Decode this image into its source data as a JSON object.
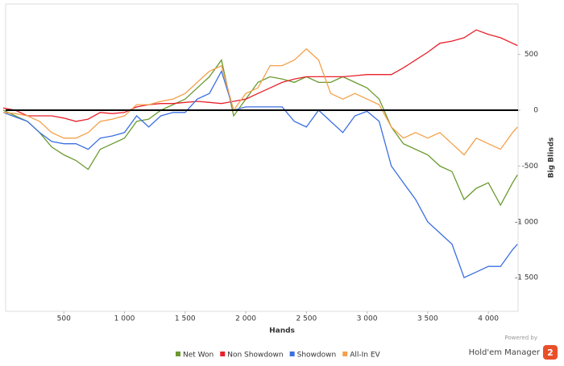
{
  "chart_data": {
    "type": "line",
    "xlabel": "Hands",
    "ylabel": "Big Blinds",
    "x": [
      0,
      100,
      200,
      300,
      400,
      500,
      600,
      700,
      800,
      900,
      1000,
      1100,
      1200,
      1300,
      1400,
      1500,
      1600,
      1700,
      1800,
      1900,
      2000,
      2100,
      2200,
      2300,
      2400,
      2500,
      2600,
      2700,
      2800,
      2900,
      3000,
      3100,
      3200,
      3300,
      3400,
      3500,
      3600,
      3700,
      3800,
      3900,
      4000,
      4100,
      4200,
      4240
    ],
    "series": [
      {
        "name": "Net Won",
        "color": "#6a9a2e",
        "values": [
          0,
          -50,
          -100,
          -200,
          -330,
          -400,
          -450,
          -530,
          -350,
          -300,
          -250,
          -100,
          -80,
          0,
          50,
          100,
          200,
          300,
          450,
          -50,
          100,
          250,
          300,
          280,
          250,
          300,
          250,
          250,
          300,
          250,
          200,
          100,
          -150,
          -300,
          -350,
          -400,
          -500,
          -550,
          -800,
          -700,
          -650,
          -850,
          -650,
          -580
        ]
      },
      {
        "name": "Non Showdown",
        "color": "#e8202a",
        "values": [
          20,
          0,
          -50,
          -50,
          -50,
          -70,
          -100,
          -80,
          -20,
          -30,
          -20,
          30,
          50,
          60,
          60,
          70,
          80,
          70,
          60,
          80,
          100,
          150,
          200,
          250,
          280,
          300,
          300,
          300,
          300,
          310,
          320,
          320,
          320,
          380,
          450,
          520,
          600,
          620,
          650,
          720,
          680,
          650,
          600,
          580
        ]
      },
      {
        "name": "Showdown",
        "color": "#3b6fe0",
        "values": [
          -20,
          -60,
          -100,
          -200,
          -280,
          -300,
          -300,
          -350,
          -250,
          -230,
          -200,
          -50,
          -150,
          -50,
          -20,
          -20,
          100,
          150,
          350,
          0,
          30,
          30,
          30,
          30,
          -100,
          -150,
          0,
          -100,
          -200,
          -50,
          -10,
          -100,
          -500,
          -650,
          -800,
          -1000,
          -1100,
          -1200,
          -1500,
          -1450,
          -1400,
          -1400,
          -1250,
          -1200
        ]
      },
      {
        "name": "All-In EV",
        "color": "#f5a04a",
        "values": [
          -20,
          -30,
          -50,
          -100,
          -200,
          -250,
          -250,
          -200,
          -100,
          -80,
          -50,
          50,
          50,
          80,
          100,
          150,
          250,
          350,
          400,
          0,
          150,
          200,
          400,
          400,
          450,
          550,
          450,
          150,
          100,
          150,
          100,
          50,
          -150,
          -250,
          -200,
          -250,
          -200,
          -300,
          -400,
          -250,
          -300,
          -350,
          -200,
          -150
        ]
      }
    ],
    "xlim": [
      20,
      4245
    ],
    "ylim": [
      -1802,
      952
    ],
    "xticks": [
      500,
      {
        "value": 1000,
        "label": "1 000"
      },
      {
        "value": 1500,
        "label": "1 500"
      },
      {
        "value": 2000,
        "label": "2 000"
      },
      {
        "value": 2500,
        "label": "2 500"
      },
      {
        "value": 3000,
        "label": "3 000"
      },
      {
        "value": 3500,
        "label": "3 500"
      },
      {
        "value": 4000,
        "label": "4 000"
      }
    ],
    "yticks": [
      500,
      0,
      -500,
      {
        "value": -1000,
        "label": "-1 000"
      },
      {
        "value": -1500,
        "label": "-1 500"
      }
    ],
    "legend": "bottom"
  },
  "branding": {
    "powered_by": "Powered by",
    "product": "Hold'em Manager",
    "badge": "2"
  }
}
